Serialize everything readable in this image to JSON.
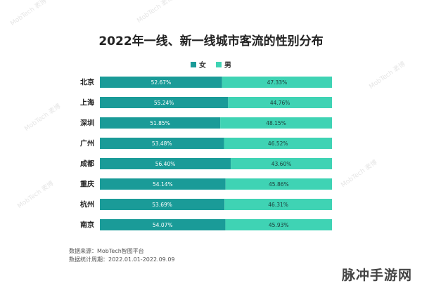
{
  "chart_data": {
    "type": "bar",
    "orientation": "horizontal",
    "stacked": true,
    "title": "2022年一线、新一线城市客流的性别分布",
    "categories": [
      "北京",
      "上海",
      "深圳",
      "广州",
      "成都",
      "重庆",
      "杭州",
      "南京"
    ],
    "series": [
      {
        "name": "女",
        "color": "#1a9b98",
        "values": [
          52.67,
          55.24,
          51.85,
          53.48,
          56.4,
          54.14,
          53.69,
          54.07
        ],
        "labels": [
          "52.67%",
          "55.24%",
          "51.85%",
          "53.48%",
          "56.40%",
          "54.14%",
          "53.69%",
          "54.07%"
        ]
      },
      {
        "name": "男",
        "color": "#3fd3b4",
        "values": [
          47.33,
          44.76,
          48.15,
          46.52,
          43.6,
          45.86,
          46.31,
          45.93
        ],
        "labels": [
          "47.33%",
          "44.76%",
          "48.15%",
          "46.52%",
          "43.60%",
          "45.86%",
          "46.31%",
          "45.93%"
        ]
      }
    ],
    "xlim": [
      0,
      100
    ],
    "legend": "top-center",
    "grid": false
  },
  "source": {
    "line1": "数据来源：MobTech智图平台",
    "line2": "数据统计周期：2022.01.01-2022.09.09"
  },
  "brand": "脉冲手游网",
  "watermark": "MobTech 袤博"
}
